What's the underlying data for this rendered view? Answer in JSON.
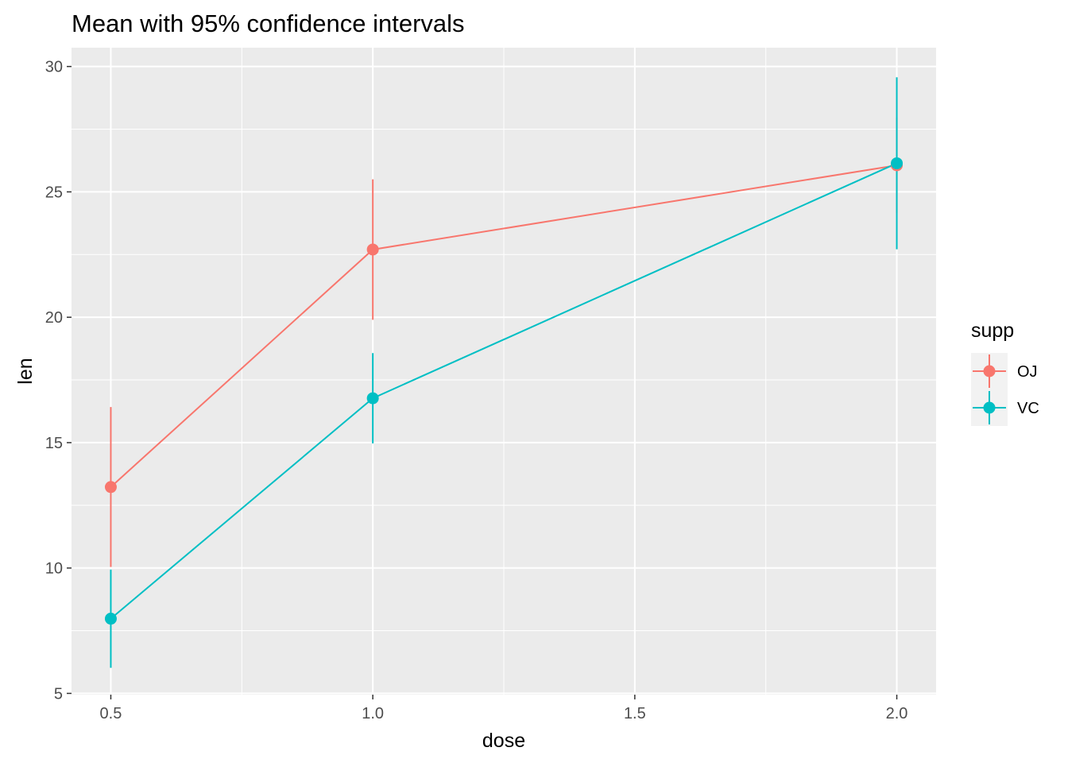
{
  "chart_data": {
    "type": "line",
    "title": "Mean with 95% confidence intervals",
    "xlabel": "dose",
    "ylabel": "len",
    "x": [
      0.5,
      1.0,
      2.0
    ],
    "xlim": [
      0.425,
      2.075
    ],
    "ylim": [
      4.95,
      30.75
    ],
    "x_ticks": [
      {
        "value": 0.5,
        "label": "0.5"
      },
      {
        "value": 1.0,
        "label": "1.0"
      },
      {
        "value": 1.5,
        "label": "1.5"
      },
      {
        "value": 2.0,
        "label": "2.0"
      }
    ],
    "y_ticks": [
      {
        "value": 5,
        "label": "5"
      },
      {
        "value": 10,
        "label": "10"
      },
      {
        "value": 15,
        "label": "15"
      },
      {
        "value": 20,
        "label": "20"
      },
      {
        "value": 25,
        "label": "25"
      },
      {
        "value": 30,
        "label": "30"
      }
    ],
    "grid": true,
    "legend": {
      "title": "supp",
      "placement": "right"
    },
    "series": [
      {
        "name": "OJ",
        "color": "#F8766D",
        "values": [
          13.23,
          22.7,
          26.06
        ],
        "lower": [
          10.04,
          19.9,
          24.16
        ],
        "upper": [
          16.42,
          25.5,
          27.96
        ]
      },
      {
        "name": "VC",
        "color": "#00BFC4",
        "values": [
          7.98,
          16.77,
          26.14
        ],
        "lower": [
          6.02,
          14.97,
          22.71
        ],
        "upper": [
          9.94,
          18.57,
          29.57
        ]
      }
    ]
  }
}
